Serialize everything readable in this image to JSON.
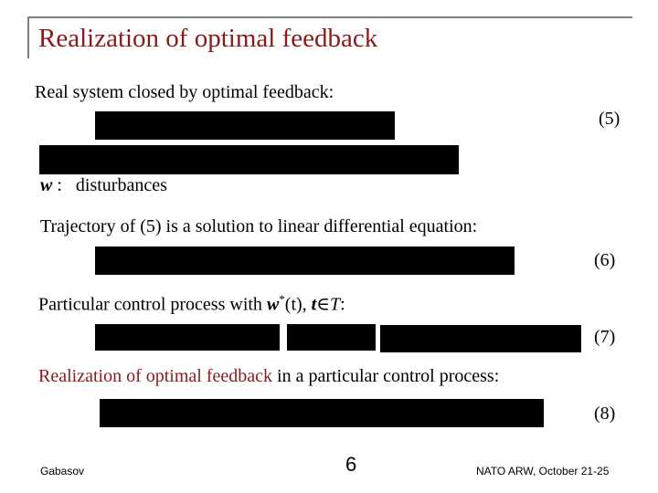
{
  "slide": {
    "title": "Realization of optimal feedback",
    "line1": "Real system closed by optimal feedback:",
    "eq5_label": "(5)",
    "w_symbol": "w",
    "w_sep": " :   ",
    "w_desc": "disturbances",
    "line2": "Trajectory of (5) is a solution to linear differential equation:",
    "eq6_label": "(6)",
    "line3_prefix": "Particular control process with ",
    "line3_w": "w",
    "line3_star": "*",
    "line3_t": "(t), ",
    "line3_t2": "t",
    "line3_in": "∈",
    "line3_T": "T",
    "line3_end": ":",
    "eq7_label": "(7)",
    "line4_red": "Realization of optimal feedback",
    "line4_rest": " in a particular control process:",
    "eq8_label": "(8)"
  },
  "footer": {
    "author": "Gabasov",
    "page": "6",
    "event": "NATO ARW, October 21-25"
  }
}
